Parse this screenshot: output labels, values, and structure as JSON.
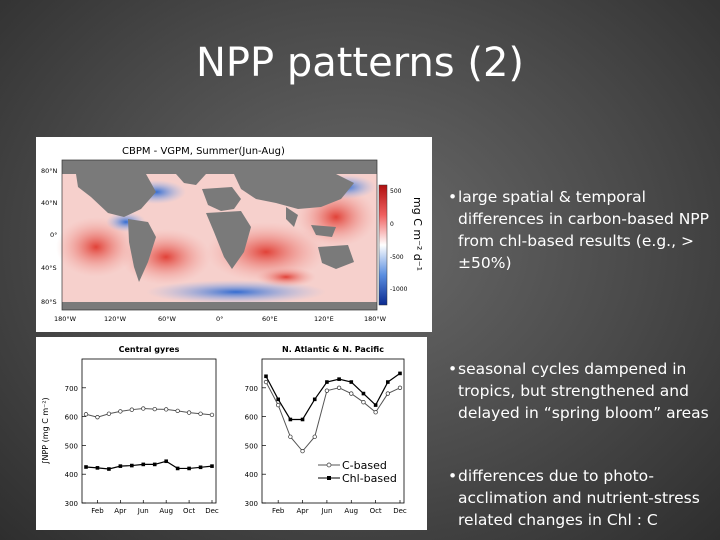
{
  "slide": {
    "title": "NPP patterns (2)",
    "bullets": [
      "large spatial & temporal differences in carbon-based NPP from chl-based results (e.g., > ±50%)",
      "seasonal cycles dampened in tropics, but strengthened and delayed in “spring bloom” areas",
      "differences due to photo-acclimation and nutrient-stress related changes in Chl : C"
    ]
  },
  "map": {
    "title": "CBPM - VGPM, Summer(Jun-Aug)",
    "lat_labels": [
      "80°N",
      "40°N",
      "0°",
      "40°S",
      "80°S"
    ],
    "lon_labels": [
      "180°W",
      "120°W",
      "60°W",
      "0°",
      "60°E",
      "120°E",
      "180°W"
    ],
    "colorbar_ticks": [
      "500",
      "0",
      "-500",
      "-1000"
    ],
    "colorbar_unit": "mg C m⁻² d⁻¹",
    "colors": {
      "positive": "#e8433a",
      "negative": "#2f6fd6",
      "land": "#7a7a7a",
      "neutral": "#ffffff"
    }
  },
  "chart_data": [
    {
      "type": "line",
      "title": "Central gyres",
      "ylabel": "∫NPP (mg C m⁻²)",
      "ylim": [
        300,
        800
      ],
      "yticks": [
        300,
        400,
        500,
        600,
        700
      ],
      "x": [
        "Jan",
        "Feb",
        "Mar",
        "Apr",
        "May",
        "Jun",
        "Jul",
        "Aug",
        "Sep",
        "Oct",
        "Nov",
        "Dec"
      ],
      "xtick_labels": [
        "Feb",
        "Apr",
        "Jun",
        "Aug",
        "Oct",
        "Dec"
      ],
      "series": [
        {
          "name": "C-based",
          "values": [
            608,
            598,
            610,
            618,
            624,
            628,
            626,
            625,
            620,
            614,
            610,
            606
          ]
        },
        {
          "name": "Chl-based",
          "values": [
            425,
            422,
            418,
            428,
            430,
            434,
            434,
            445,
            420,
            420,
            424,
            428
          ]
        }
      ]
    },
    {
      "type": "line",
      "title": "N. Atlantic & N. Pacific",
      "ylim": [
        300,
        800
      ],
      "yticks": [
        300,
        400,
        500,
        600,
        700
      ],
      "x": [
        "Jan",
        "Feb",
        "Mar",
        "Apr",
        "May",
        "Jun",
        "Jul",
        "Aug",
        "Sep",
        "Oct",
        "Nov",
        "Dec"
      ],
      "xtick_labels": [
        "Feb",
        "Apr",
        "Jun",
        "Aug",
        "Oct",
        "Dec"
      ],
      "legend_position": "bottom-left",
      "series": [
        {
          "name": "C-based",
          "values": [
            720,
            640,
            530,
            480,
            530,
            690,
            700,
            680,
            650,
            615,
            680,
            700
          ]
        },
        {
          "name": "Chl-based",
          "values": [
            740,
            660,
            590,
            590,
            660,
            720,
            730,
            720,
            680,
            640,
            720,
            750
          ]
        }
      ]
    }
  ]
}
